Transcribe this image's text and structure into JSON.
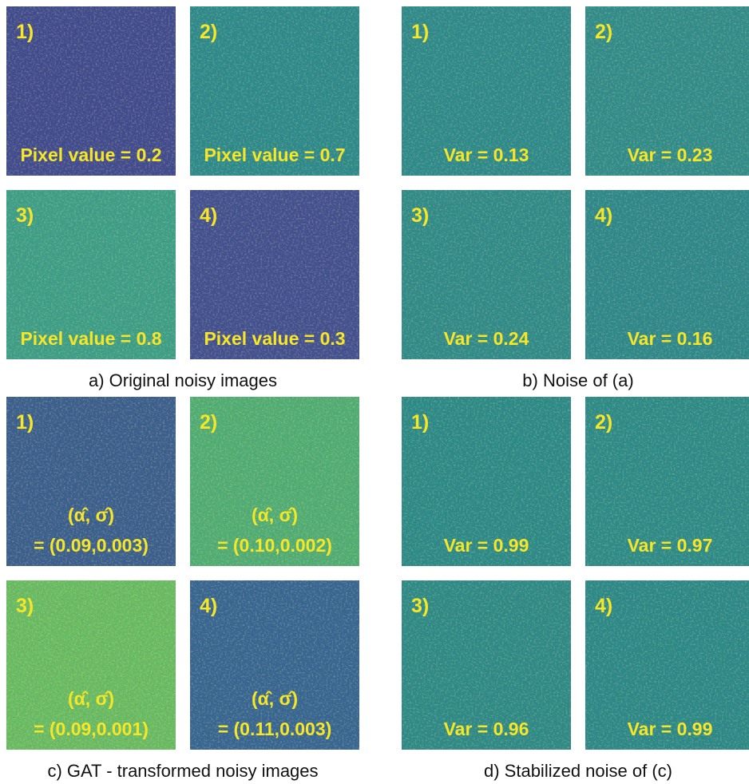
{
  "panels": [
    {
      "caption": "a) Original noisy images",
      "tiles": [
        {
          "number": "1)",
          "lines": [
            "Pixel value = 0.2"
          ]
        },
        {
          "number": "2)",
          "lines": [
            "Pixel value = 0.7"
          ]
        },
        {
          "number": "3)",
          "lines": [
            "Pixel value = 0.8"
          ]
        },
        {
          "number": "4)",
          "lines": [
            "Pixel value = 0.3"
          ]
        }
      ]
    },
    {
      "caption": "b) Noise of (a)",
      "tiles": [
        {
          "number": "1)",
          "lines": [
            "Var = 0.13"
          ]
        },
        {
          "number": "2)",
          "lines": [
            "Var = 0.23"
          ]
        },
        {
          "number": "3)",
          "lines": [
            "Var = 0.24"
          ]
        },
        {
          "number": "4)",
          "lines": [
            "Var = 0.16"
          ]
        }
      ]
    },
    {
      "caption": "c) GAT - transformed noisy images",
      "tiles": [
        {
          "number": "1)",
          "lines": [
            "(α̂, σ̂)",
            "= (0.09,0.003)"
          ]
        },
        {
          "number": "2)",
          "lines": [
            "(α̂, σ̂)",
            "= (0.10,0.002)"
          ]
        },
        {
          "number": "3)",
          "lines": [
            "(α̂, σ̂)",
            "= (0.09,0.001)"
          ]
        },
        {
          "number": "4)",
          "lines": [
            "(α̂, σ̂)",
            "= (0.11,0.003)"
          ]
        }
      ]
    },
    {
      "caption": "d) Stabilized noise of (c)",
      "tiles": [
        {
          "number": "1)",
          "lines": [
            "Var = 0.99"
          ]
        },
        {
          "number": "2)",
          "lines": [
            "Var = 0.97"
          ]
        },
        {
          "number": "3)",
          "lines": [
            "Var = 0.96"
          ]
        },
        {
          "number": "4)",
          "lines": [
            "Var = 0.99"
          ]
        }
      ]
    }
  ]
}
